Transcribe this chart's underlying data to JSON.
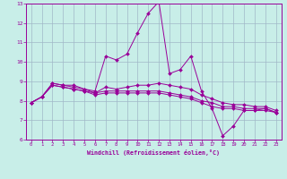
{
  "title": "",
  "xlabel": "Windchill (Refroidissement éolien,°C)",
  "background_color": "#c8eee8",
  "line_color": "#990099",
  "grid_color": "#a0b8c8",
  "xlim": [
    -0.5,
    23.5
  ],
  "ylim": [
    6,
    13
  ],
  "yticks": [
    6,
    7,
    8,
    9,
    10,
    11,
    12,
    13
  ],
  "xticks": [
    0,
    1,
    2,
    3,
    4,
    5,
    6,
    7,
    8,
    9,
    10,
    11,
    12,
    13,
    14,
    15,
    16,
    17,
    18,
    19,
    20,
    21,
    22,
    23
  ],
  "series": [
    [
      7.9,
      8.2,
      8.9,
      8.8,
      8.8,
      8.6,
      8.5,
      10.3,
      10.1,
      10.4,
      11.5,
      12.5,
      13.1,
      9.4,
      9.6,
      10.3,
      8.5,
      7.6,
      6.2,
      6.7,
      7.5,
      7.5,
      7.6,
      7.4
    ],
    [
      7.9,
      8.2,
      8.9,
      8.8,
      8.7,
      8.6,
      8.4,
      8.7,
      8.6,
      8.7,
      8.8,
      8.8,
      8.9,
      8.8,
      8.7,
      8.6,
      8.3,
      8.1,
      7.9,
      7.8,
      7.8,
      7.7,
      7.7,
      7.5
    ],
    [
      7.9,
      8.2,
      8.8,
      8.7,
      8.6,
      8.5,
      8.4,
      8.5,
      8.5,
      8.5,
      8.5,
      8.5,
      8.5,
      8.4,
      8.3,
      8.2,
      8.0,
      7.9,
      7.7,
      7.7,
      7.6,
      7.6,
      7.6,
      7.4
    ],
    [
      7.9,
      8.2,
      8.8,
      8.7,
      8.6,
      8.5,
      8.3,
      8.4,
      8.4,
      8.4,
      8.4,
      8.4,
      8.4,
      8.3,
      8.2,
      8.1,
      7.9,
      7.7,
      7.6,
      7.6,
      7.5,
      7.5,
      7.5,
      7.4
    ]
  ]
}
